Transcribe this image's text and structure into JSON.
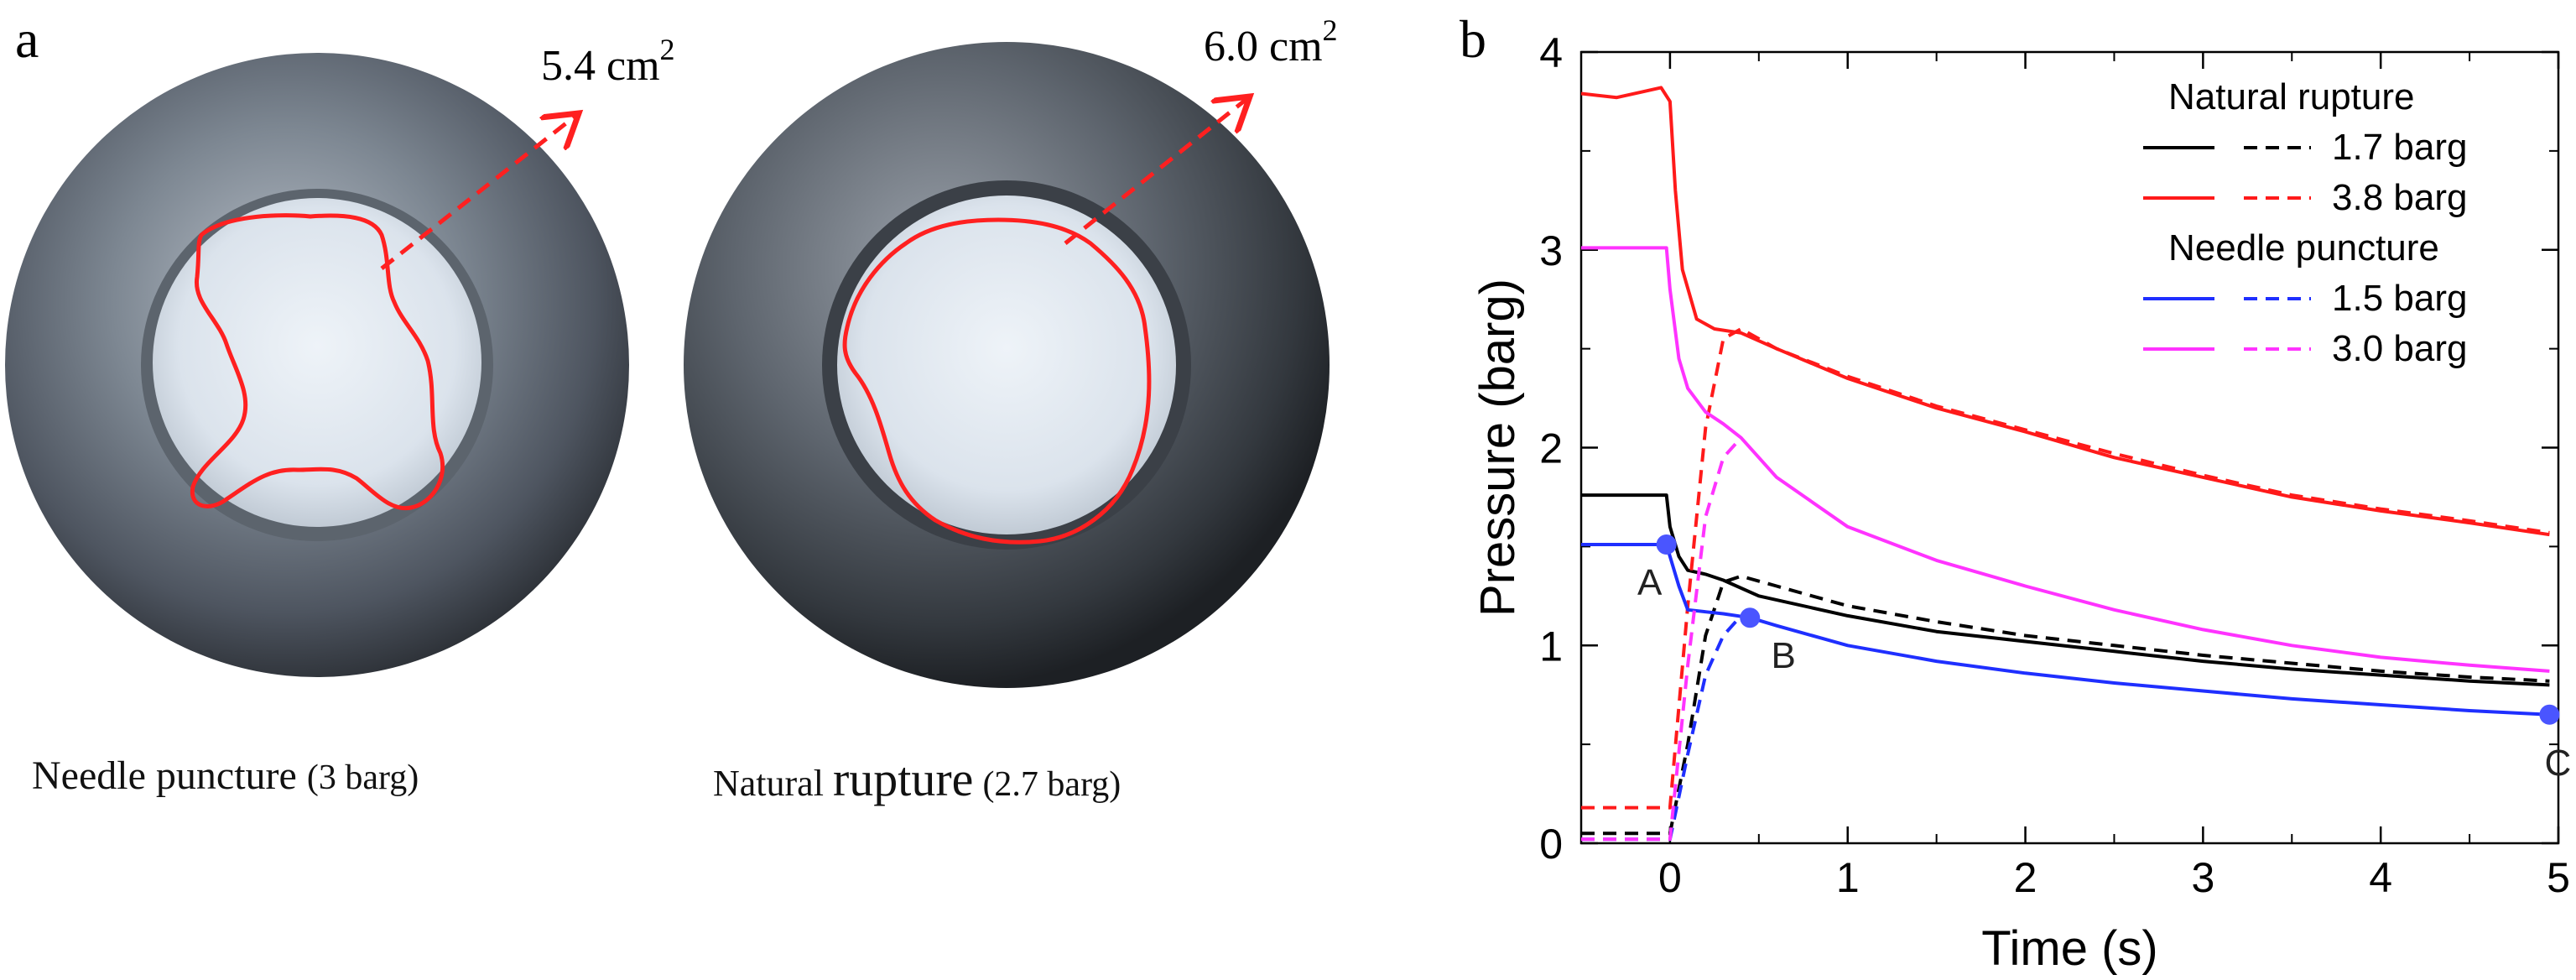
{
  "panel_a": {
    "label": "a",
    "left_photo": {
      "area_label": "5.4 cm",
      "area_exp": "2",
      "caption_main": "Needle puncture",
      "caption_paren": "(3 barg)"
    },
    "right_photo": {
      "area_label": "6.0 cm",
      "area_exp": "2",
      "caption_main1": "Natural",
      "caption_main2": "rupture",
      "caption_paren": "(2.7 barg)"
    },
    "colors": {
      "outline": "#ff2020",
      "metal": "#6b7480",
      "membrane": "#dfe6ee"
    }
  },
  "panel_b": {
    "label": "b"
  },
  "chart_data": {
    "type": "line",
    "xlabel": "Time (s)",
    "ylabel": "Pressure (barg)",
    "xlim": [
      -0.5,
      5
    ],
    "ylim": [
      0,
      4
    ],
    "xticks": [
      0,
      1,
      2,
      3,
      4,
      5
    ],
    "yticks": [
      0,
      1,
      2,
      3,
      4
    ],
    "grid": false,
    "legend": {
      "placement": "top-right",
      "groups": [
        {
          "title": "Natural rupture",
          "entries": [
            {
              "label": "1.7 barg",
              "color": "#000000"
            },
            {
              "label": "3.8 barg",
              "color": "#ff1a1a"
            }
          ]
        },
        {
          "title": "Needle puncture",
          "entries": [
            {
              "label": "1.5 barg",
              "color": "#1f2fff"
            },
            {
              "label": "3.0 barg",
              "color": "#ff33ff"
            }
          ]
        }
      ]
    },
    "series": [
      {
        "name": "1.7 barg",
        "group": "Natural rupture",
        "style": "solid",
        "color": "#000000",
        "x": [
          -0.5,
          -0.02,
          0.0,
          0.05,
          0.1,
          0.2,
          0.3,
          0.5,
          1,
          1.5,
          2,
          2.5,
          3,
          3.5,
          4,
          4.5,
          4.95
        ],
        "y": [
          1.76,
          1.76,
          1.6,
          1.45,
          1.38,
          1.36,
          1.33,
          1.25,
          1.15,
          1.07,
          1.02,
          0.97,
          0.92,
          0.88,
          0.85,
          0.82,
          0.8
        ]
      },
      {
        "name": "1.7 barg",
        "group": "Natural rupture",
        "style": "dashed",
        "color": "#000000",
        "x": [
          -0.5,
          0.0,
          0.1,
          0.2,
          0.3,
          0.4,
          0.6,
          1,
          1.5,
          2,
          2.5,
          3,
          3.5,
          4,
          4.5,
          4.95
        ],
        "y": [
          0.05,
          0.05,
          0.5,
          1.05,
          1.32,
          1.35,
          1.3,
          1.2,
          1.12,
          1.05,
          1.0,
          0.95,
          0.91,
          0.87,
          0.84,
          0.82
        ]
      },
      {
        "name": "3.8 barg",
        "group": "Natural rupture",
        "style": "solid",
        "color": "#ff1a1a",
        "x": [
          -0.5,
          -0.3,
          -0.15,
          -0.05,
          0.0,
          0.03,
          0.07,
          0.15,
          0.25,
          0.4,
          0.6,
          1,
          1.5,
          2,
          2.5,
          3,
          3.5,
          4,
          4.5,
          4.95
        ],
        "y": [
          3.79,
          3.77,
          3.8,
          3.82,
          3.75,
          3.3,
          2.9,
          2.65,
          2.6,
          2.58,
          2.5,
          2.35,
          2.2,
          2.08,
          1.95,
          1.85,
          1.75,
          1.68,
          1.62,
          1.56
        ]
      },
      {
        "name": "3.8 barg",
        "group": "Natural rupture",
        "style": "dashed",
        "color": "#ff1a1a",
        "x": [
          -0.5,
          0.0,
          0.1,
          0.2,
          0.3,
          0.4,
          0.6,
          1,
          1.5,
          2,
          2.5,
          3,
          3.5,
          4,
          4.5,
          4.95
        ],
        "y": [
          0.18,
          0.18,
          1.2,
          2.1,
          2.55,
          2.6,
          2.5,
          2.36,
          2.21,
          2.09,
          1.97,
          1.86,
          1.76,
          1.69,
          1.63,
          1.57
        ]
      },
      {
        "name": "1.5 barg",
        "group": "Needle puncture",
        "style": "solid",
        "color": "#1f2fff",
        "x": [
          -0.5,
          -0.02,
          0.0,
          0.05,
          0.1,
          0.2,
          0.3,
          0.45,
          0.6,
          1,
          1.5,
          2,
          2.5,
          3,
          3.5,
          4,
          4.5,
          4.95
        ],
        "y": [
          1.51,
          1.51,
          1.45,
          1.3,
          1.18,
          1.17,
          1.16,
          1.14,
          1.1,
          1.0,
          0.92,
          0.86,
          0.81,
          0.77,
          0.73,
          0.7,
          0.67,
          0.65
        ]
      },
      {
        "name": "1.5 barg",
        "group": "Needle puncture",
        "style": "dashed",
        "color": "#1f2fff",
        "x": [
          -0.5,
          0.0,
          0.1,
          0.2,
          0.3,
          0.4
        ],
        "y": [
          0.02,
          0.02,
          0.45,
          0.85,
          1.05,
          1.15
        ]
      },
      {
        "name": "3.0 barg",
        "group": "Needle puncture",
        "style": "solid",
        "color": "#ff33ff",
        "x": [
          -0.5,
          -0.02,
          0.0,
          0.05,
          0.1,
          0.2,
          0.3,
          0.4,
          0.6,
          1,
          1.5,
          2,
          2.5,
          3,
          3.5,
          4,
          4.5,
          4.95
        ],
        "y": [
          3.01,
          3.01,
          2.8,
          2.45,
          2.3,
          2.18,
          2.12,
          2.05,
          1.85,
          1.6,
          1.43,
          1.3,
          1.18,
          1.08,
          1.0,
          0.94,
          0.9,
          0.87
        ]
      },
      {
        "name": "3.0 barg",
        "group": "Needle puncture",
        "style": "dashed",
        "color": "#ff33ff",
        "x": [
          -0.5,
          0.0,
          0.1,
          0.2,
          0.3,
          0.4
        ],
        "y": [
          0.02,
          0.02,
          0.9,
          1.65,
          1.95,
          2.05
        ]
      }
    ],
    "annotations": [
      {
        "label": "A",
        "x": -0.02,
        "y": 1.51,
        "color": "#4a55ff"
      },
      {
        "label": "B",
        "x": 0.45,
        "y": 1.14,
        "color": "#4a55ff"
      },
      {
        "label": "C",
        "x": 4.95,
        "y": 0.65,
        "color": "#4a55ff"
      }
    ]
  }
}
